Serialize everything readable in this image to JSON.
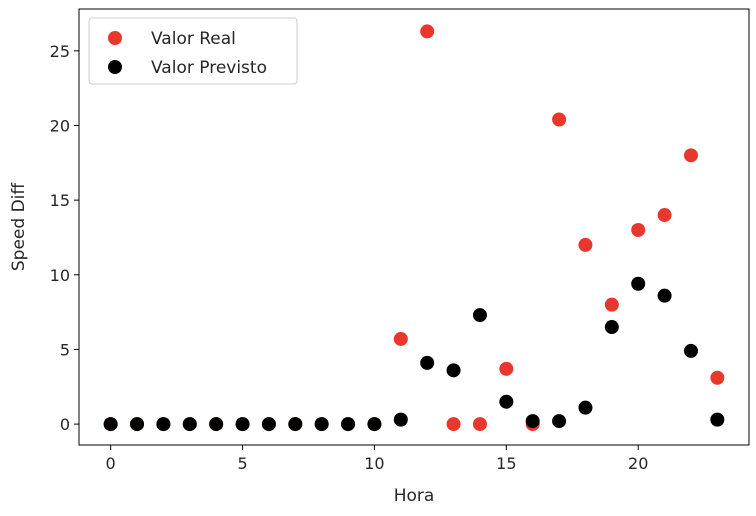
{
  "chart_data": {
    "type": "scatter",
    "title": "",
    "xlabel": "Hora",
    "ylabel": "Speed Diff",
    "xlim": [
      -1.2,
      24.2
    ],
    "ylim": [
      -1.4,
      27.8
    ],
    "xticks": [
      0,
      5,
      10,
      15,
      20
    ],
    "yticks": [
      0,
      5,
      10,
      15,
      20,
      25
    ],
    "grid": false,
    "legend_position": "upper-left",
    "series": [
      {
        "name": "Valor Real",
        "color": "#e8372c",
        "points": [
          [
            0,
            0
          ],
          [
            1,
            0
          ],
          [
            2,
            0
          ],
          [
            3,
            0
          ],
          [
            4,
            0
          ],
          [
            5,
            0
          ],
          [
            6,
            0
          ],
          [
            7,
            0
          ],
          [
            8,
            0
          ],
          [
            9,
            0
          ],
          [
            10,
            0
          ],
          [
            11,
            5.7
          ],
          [
            12,
            26.3
          ],
          [
            13,
            0
          ],
          [
            14,
            0
          ],
          [
            15,
            3.7
          ],
          [
            16,
            0
          ],
          [
            17,
            20.4
          ],
          [
            18,
            12.0
          ],
          [
            19,
            8.0
          ],
          [
            20,
            13.0
          ],
          [
            21,
            14.0
          ],
          [
            22,
            18.0
          ],
          [
            23,
            3.1
          ]
        ]
      },
      {
        "name": "Valor Previsto",
        "color": "#000000",
        "points": [
          [
            0,
            0
          ],
          [
            1,
            0
          ],
          [
            2,
            0
          ],
          [
            3,
            0
          ],
          [
            4,
            0
          ],
          [
            5,
            0
          ],
          [
            6,
            0
          ],
          [
            7,
            0
          ],
          [
            8,
            0
          ],
          [
            9,
            0
          ],
          [
            10,
            0
          ],
          [
            11,
            0.3
          ],
          [
            12,
            4.1
          ],
          [
            13,
            3.6
          ],
          [
            14,
            7.3
          ],
          [
            15,
            1.5
          ],
          [
            16,
            0.2
          ],
          [
            17,
            0.2
          ],
          [
            18,
            1.1
          ],
          [
            19,
            6.5
          ],
          [
            20,
            9.4
          ],
          [
            21,
            8.6
          ],
          [
            22,
            4.9
          ],
          [
            23,
            0.3
          ]
        ]
      }
    ]
  }
}
